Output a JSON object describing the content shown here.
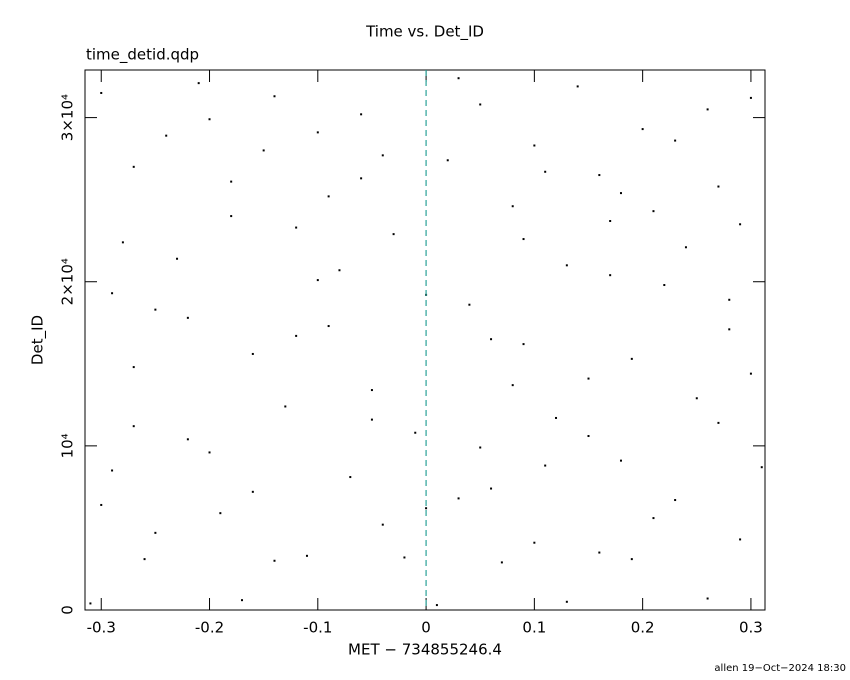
{
  "chart_data": {
    "type": "scatter",
    "title": "Time vs. Det_ID",
    "subtitle": "time_detid.qdp",
    "x_label": "MET − 734855246.4",
    "y_label": "Det_ID",
    "footer": "allen 19−Oct−2024 18:30",
    "color": "#000000",
    "vline": {
      "x": 0,
      "color": "#2aa198"
    },
    "xlim": [
      -0.315,
      0.313
    ],
    "ylim": [
      0,
      32900
    ],
    "xticks": [
      -0.3,
      -0.2,
      -0.1,
      0,
      0.1,
      0.2,
      0.3
    ],
    "yticks": [
      0,
      {
        "value": 10000,
        "label": "10⁴"
      },
      {
        "value": 20000,
        "label": "2×10⁴"
      },
      {
        "value": 30000,
        "label": "3×10⁴"
      }
    ],
    "x": [
      -0.3,
      -0.24,
      -0.18,
      -0.12,
      -0.06,
      0.02,
      0.08,
      0.14,
      0.2,
      0.27,
      -0.28,
      -0.21,
      -0.15,
      -0.09,
      -0.03,
      0.05,
      0.11,
      0.17,
      0.23,
      0.3,
      -0.29,
      -0.22,
      -0.16,
      -0.1,
      -0.05,
      0.04,
      0.09,
      0.15,
      0.22,
      0.28,
      -0.27,
      -0.2,
      -0.13,
      -0.07,
      -0.01,
      0.06,
      0.12,
      0.18,
      0.25,
      0.31,
      -0.3,
      -0.25,
      -0.19,
      -0.11,
      -0.04,
      0.03,
      0.1,
      0.16,
      0.21,
      0.29,
      -0.26,
      -0.14,
      -0.02,
      0.07,
      0.19,
      -0.31,
      -0.17,
      0.01,
      0.13,
      0.26,
      -0.23,
      -0.08,
      0.0,
      0.13,
      0.24,
      -0.27,
      -0.12,
      0.08,
      0.19,
      0.3,
      -0.2,
      -0.14,
      -0.04,
      0.03,
      0.1,
      0.16,
      0.26,
      -0.27,
      -0.1,
      0.21,
      -0.22,
      -0.05,
      0.05,
      0.15,
      0.27,
      -0.29,
      -0.16,
      0.0,
      0.11,
      0.23,
      -0.18,
      -0.06,
      0.09,
      0.18,
      0.29,
      -0.25,
      -0.09,
      0.06,
      0.17,
      0.28
    ],
    "values": [
      31500,
      28900,
      26100,
      23300,
      30200,
      27400,
      24600,
      31900,
      29300,
      25800,
      22400,
      32100,
      28000,
      25200,
      22900,
      30800,
      26700,
      23700,
      28600,
      31200,
      19300,
      17800,
      15600,
      20100,
      13400,
      18600,
      16200,
      14100,
      19800,
      17100,
      11200,
      9600,
      12400,
      8100,
      10800,
      7400,
      11700,
      9100,
      12900,
      8700,
      6400,
      4700,
      5900,
      3300,
      5200,
      6800,
      4100,
      3500,
      5600,
      4300,
      3100,
      3000,
      3200,
      2900,
      3100,
      400,
      600,
      300,
      500,
      700,
      21400,
      20700,
      19200,
      21000,
      22100,
      14800,
      16700,
      13700,
      15300,
      14400,
      29900,
      31300,
      27700,
      32400,
      28300,
      26500,
      30500,
      27000,
      29100,
      24300,
      10400,
      11600,
      9900,
      10600,
      11400,
      8500,
      7200,
      6200,
      8800,
      6700,
      24000,
      26300,
      22600,
      25400,
      23500,
      18300,
      17300,
      16500,
      20400,
      18900
    ]
  }
}
